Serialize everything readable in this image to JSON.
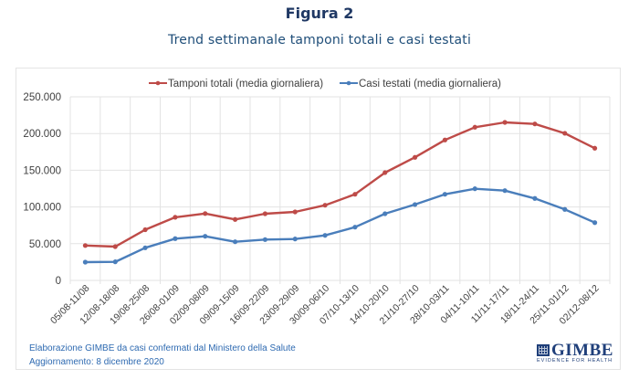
{
  "header": {
    "figure_label": "Figura 2",
    "title": "Trend settimanale tamponi totali e casi testati"
  },
  "colors": {
    "tamponi": "#be4b48",
    "casi": "#4a7ebb",
    "title": "#1f3864",
    "footer": "#2e6ab1",
    "grid": "#e3e3e3"
  },
  "chart_data": {
    "type": "line",
    "title": "Trend settimanale tamponi totali e casi testati",
    "xlabel": "",
    "ylabel": "",
    "ylim": [
      0,
      250000
    ],
    "yticks": [
      0,
      50000,
      100000,
      150000,
      200000,
      250000
    ],
    "ytick_labels": [
      "0",
      "50.000",
      "100.000",
      "150.000",
      "200.000",
      "250.000"
    ],
    "grid": true,
    "legend_position": "top-center",
    "categories": [
      "05/08-11/08",
      "12/08-18/08",
      "19/08-25/08",
      "26/08-01/09",
      "02/09-08/09",
      "09/09-15/09",
      "16/09-22/09",
      "23/09-29/09",
      "30/09-06/10",
      "07/10-13/10",
      "14/10-20/10",
      "21/10-27/10",
      "28/10-03/11",
      "04/11-10/11",
      "11/11-17/11",
      "18/11-24/11",
      "25/11-01/12",
      "02/12-08/12"
    ],
    "series": [
      {
        "name": "Tamponi totali (media giornaliera)",
        "color": "#be4b48",
        "values": [
          47500,
          46000,
          69000,
          86000,
          91000,
          83000,
          90800,
          93300,
          102400,
          117300,
          146800,
          167600,
          191200,
          208600,
          215200,
          213100,
          200300,
          180000
        ]
      },
      {
        "name": "Casi testati (media giornaliera)",
        "color": "#4a7ebb",
        "values": [
          24900,
          25300,
          44400,
          56900,
          60100,
          52600,
          55600,
          56400,
          61300,
          72500,
          90800,
          103300,
          117300,
          124800,
          122300,
          111600,
          96700,
          78700
        ]
      }
    ]
  },
  "footer": {
    "source": "Elaborazione GIMBE da casi confermati dal Ministero della Salute",
    "updated": "Aggiornamento:  8 dicembre  2020"
  },
  "logo": {
    "name": "GIMBE",
    "tagline": "EVIDENCE FOR HEALTH"
  }
}
